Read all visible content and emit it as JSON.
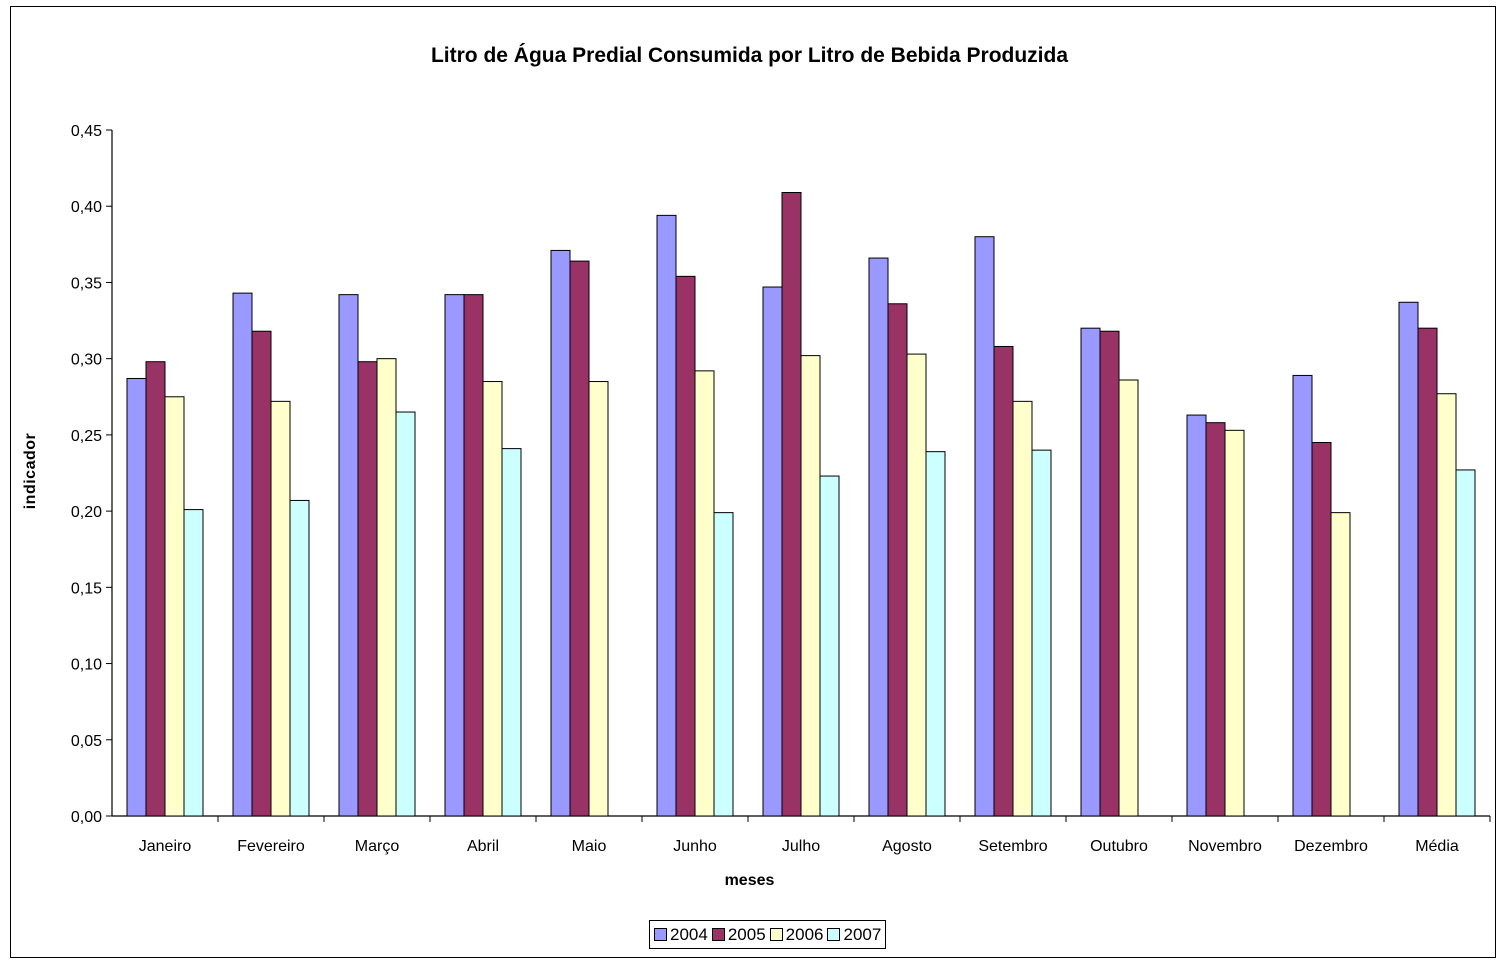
{
  "chart_data": {
    "type": "bar",
    "title": "Litro de Água Predial Consumida por Litro de Bebida Produzida",
    "xlabel": "meses",
    "ylabel": "indicador",
    "ylim": [
      0,
      0.45
    ],
    "yticks": [
      "0,00",
      "0,05",
      "0,10",
      "0,15",
      "0,20",
      "0,25",
      "0,30",
      "0,35",
      "0,40",
      "0,45"
    ],
    "categories": [
      "Janeiro",
      "Fevereiro",
      "Março",
      "Abril",
      "Maio",
      "Junho",
      "Julho",
      "Agosto",
      "Setembro",
      "Outubro",
      "Novembro",
      "Dezembro",
      "Média"
    ],
    "series": [
      {
        "name": "2004",
        "color": "#9999ff",
        "values": [
          0.287,
          0.343,
          0.342,
          0.342,
          0.371,
          0.394,
          0.347,
          0.366,
          0.38,
          0.32,
          0.263,
          0.289,
          0.337
        ]
      },
      {
        "name": "2005",
        "color": "#993366",
        "values": [
          0.298,
          0.318,
          0.298,
          0.342,
          0.364,
          0.354,
          0.409,
          0.336,
          0.308,
          0.318,
          0.258,
          0.245,
          0.32
        ]
      },
      {
        "name": "2006",
        "color": "#ffffcc",
        "values": [
          0.275,
          0.272,
          0.3,
          0.285,
          0.285,
          0.292,
          0.302,
          0.303,
          0.272,
          0.286,
          0.253,
          0.199,
          0.277
        ]
      },
      {
        "name": "2007",
        "color": "#ccffff",
        "values": [
          0.201,
          0.207,
          0.265,
          0.241,
          null,
          0.199,
          0.223,
          0.239,
          0.24,
          null,
          null,
          null,
          0.227
        ]
      }
    ],
    "grid": false,
    "legend_position": "bottom"
  }
}
